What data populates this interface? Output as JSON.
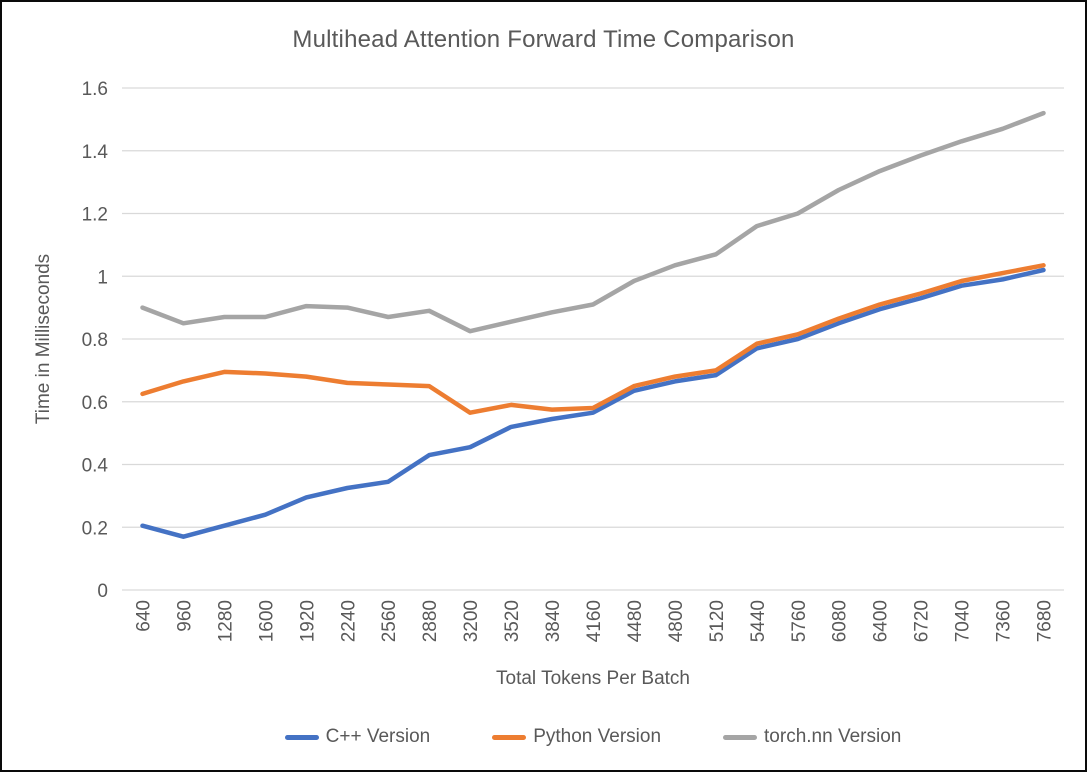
{
  "chart": {
    "title": "Multihead Attention Forward Time Comparison",
    "x_axis_title": "Total Tokens Per Batch",
    "y_axis_title": "Time in Milliseconds",
    "colors": {
      "background": "#FFFFFF",
      "frame": "#0A0A0A",
      "gridline": "#D9D9D9",
      "text": "#595959"
    }
  },
  "chart_data": {
    "type": "line",
    "title": "Multihead Attention Forward Time Comparison",
    "xlabel": "Total Tokens Per Batch",
    "ylabel": "Time in Milliseconds",
    "categories": [
      640,
      960,
      1280,
      1600,
      1920,
      2240,
      2560,
      2880,
      3200,
      3520,
      3840,
      4160,
      4480,
      4800,
      5120,
      5440,
      5760,
      6080,
      6400,
      6720,
      7040,
      7360,
      7680
    ],
    "series": [
      {
        "name": "C++ Version",
        "color": "#4472C4",
        "values": [
          0.205,
          0.17,
          0.205,
          0.24,
          0.295,
          0.325,
          0.345,
          0.43,
          0.455,
          0.52,
          0.545,
          0.565,
          0.635,
          0.665,
          0.685,
          0.77,
          0.8,
          0.85,
          0.895,
          0.93,
          0.97,
          0.99,
          1.02
        ]
      },
      {
        "name": "Python Version",
        "color": "#ED7D31",
        "values": [
          0.625,
          0.665,
          0.695,
          0.69,
          0.68,
          0.66,
          0.655,
          0.65,
          0.565,
          0.59,
          0.575,
          0.58,
          0.65,
          0.68,
          0.7,
          0.785,
          0.815,
          0.865,
          0.91,
          0.945,
          0.985,
          1.01,
          1.035
        ]
      },
      {
        "name": "torch.nn Version",
        "color": "#A5A5A5",
        "values": [
          0.9,
          0.85,
          0.87,
          0.87,
          0.905,
          0.9,
          0.87,
          0.89,
          0.825,
          0.855,
          0.885,
          0.91,
          0.985,
          1.035,
          1.07,
          1.16,
          1.2,
          1.275,
          1.335,
          1.385,
          1.43,
          1.47,
          1.52
        ]
      }
    ],
    "ylim": [
      0,
      1.6
    ],
    "ytick_step": 0.2,
    "ytick_labels": [
      "0",
      "0.2",
      "0.4",
      "0.6",
      "0.8",
      "1",
      "1.2",
      "1.4",
      "1.6"
    ],
    "grid": "horizontal",
    "legend_position": "bottom",
    "x_labels_rotated": true
  }
}
